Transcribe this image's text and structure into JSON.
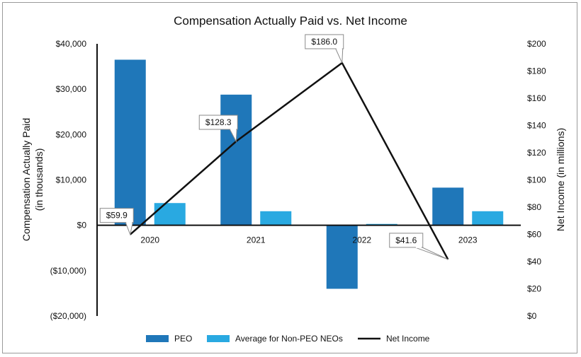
{
  "chart_data": {
    "type": "bar",
    "title": "Compensation Actually Paid vs. Net Income",
    "categories": [
      "2020",
      "2021",
      "2022",
      "2023"
    ],
    "ylabel_left_line1": "Compensation Actually Paid",
    "ylabel_left_line2": "(in thousands)",
    "ylabel_right": "Net Income (in millions)",
    "left_axis": {
      "ylim": [
        -20000,
        40000
      ],
      "ticks": [
        40000,
        30000,
        20000,
        10000,
        0,
        -10000,
        -20000
      ],
      "tick_labels": [
        "$40,000",
        "$30,000",
        "$20,000",
        "$10,000",
        "$0",
        "($10,000)",
        "($20,000)"
      ]
    },
    "right_axis": {
      "ylim": [
        0,
        200
      ],
      "ticks": [
        200,
        180,
        160,
        140,
        120,
        100,
        80,
        60,
        40,
        20,
        0
      ],
      "tick_labels": [
        "$200",
        "$180",
        "$160",
        "$140",
        "$120",
        "$100",
        "$80",
        "$60",
        "$40",
        "$20",
        "$0"
      ]
    },
    "series": [
      {
        "name": "PEO",
        "kind": "bar",
        "axis": "left",
        "color": "#1f77b9",
        "values": [
          36500,
          28800,
          -14000,
          8300
        ]
      },
      {
        "name": "Average for Non-PEO NEOs",
        "kind": "bar",
        "axis": "left",
        "color": "#29a9e1",
        "values": [
          4900,
          3100,
          300,
          3100
        ]
      },
      {
        "name": "Net Income",
        "kind": "line",
        "axis": "right",
        "color": "#111111",
        "values": [
          59.9,
          128.3,
          186.0,
          41.6
        ],
        "labels": [
          "$59.9",
          "$128.3",
          "$186.0",
          "$41.6"
        ]
      }
    ],
    "legend_position": "bottom"
  }
}
